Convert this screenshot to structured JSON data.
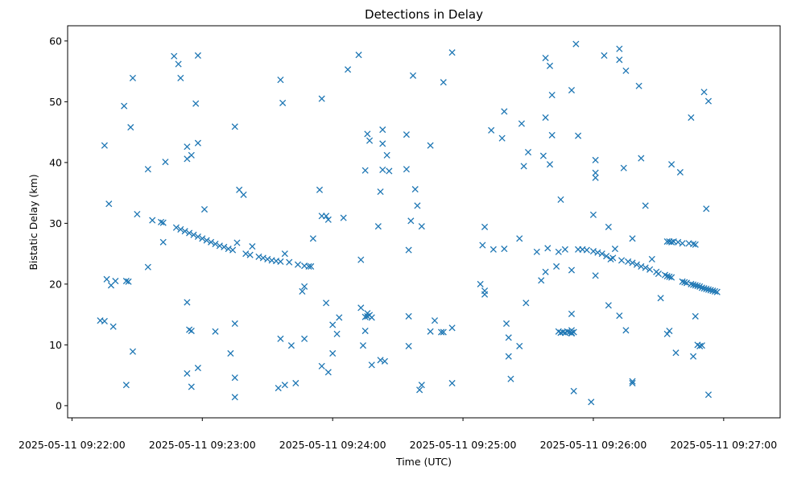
{
  "chart_data": {
    "type": "scatter",
    "title": "Detections in Delay",
    "xlabel": "Time (UTC)",
    "ylabel": "Bistatic Delay (km)",
    "marker": "x",
    "color": "#1f77b4",
    "grid": false,
    "legend": "none",
    "xlim": [
      "2025-05-11 09:21:58",
      "2025-05-11 09:27:26"
    ],
    "ylim": [
      -2,
      62.5
    ],
    "x_ticks": [
      "2025-05-11 09:22:00",
      "2025-05-11 09:23:00",
      "2025-05-11 09:24:00",
      "2025-05-11 09:25:00",
      "2025-05-11 09:26:00",
      "2025-05-11 09:27:00"
    ],
    "y_ticks": [
      "0",
      "10",
      "20",
      "30",
      "40",
      "50",
      "60"
    ],
    "points": [
      [
        "2025-05-11 09:22:15",
        42.8
      ],
      [
        "2025-05-11 09:22:17",
        33.2
      ],
      [
        "2025-05-11 09:22:16",
        20.8
      ],
      [
        "2025-05-11 09:22:18",
        19.8
      ],
      [
        "2025-05-11 09:22:20",
        20.5
      ],
      [
        "2025-05-11 09:22:13",
        14.0
      ],
      [
        "2025-05-11 09:22:15",
        13.9
      ],
      [
        "2025-05-11 09:22:19",
        13.0
      ],
      [
        "2025-05-11 09:22:24",
        49.3
      ],
      [
        "2025-05-11 09:22:27",
        45.8
      ],
      [
        "2025-05-11 09:22:28",
        53.9
      ],
      [
        "2025-05-11 09:22:25",
        20.5
      ],
      [
        "2025-05-11 09:22:26",
        20.4
      ],
      [
        "2025-05-11 09:22:25",
        3.4
      ],
      [
        "2025-05-11 09:22:28",
        8.9
      ],
      [
        "2025-05-11 09:22:30",
        31.5
      ],
      [
        "2025-05-11 09:22:35",
        38.9
      ],
      [
        "2025-05-11 09:22:35",
        22.8
      ],
      [
        "2025-05-11 09:22:37",
        30.5
      ],
      [
        "2025-05-11 09:22:41",
        30.2
      ],
      [
        "2025-05-11 09:22:42",
        30.1
      ],
      [
        "2025-05-11 09:22:42",
        26.9
      ],
      [
        "2025-05-11 09:22:43",
        40.1
      ],
      [
        "2025-05-11 09:22:47",
        57.5
      ],
      [
        "2025-05-11 09:22:49",
        56.2
      ],
      [
        "2025-05-11 09:22:50",
        53.9
      ],
      [
        "2025-05-11 09:22:53",
        42.6
      ],
      [
        "2025-05-11 09:22:53",
        40.6
      ],
      [
        "2025-05-11 09:22:55",
        41.2
      ],
      [
        "2025-05-11 09:22:57",
        49.7
      ],
      [
        "2025-05-11 09:22:58",
        43.2
      ],
      [
        "2025-05-11 09:22:58",
        57.6
      ],
      [
        "2025-05-11 09:22:53",
        17.0
      ],
      [
        "2025-05-11 09:22:54",
        12.5
      ],
      [
        "2025-05-11 09:22:55",
        12.3
      ],
      [
        "2025-05-11 09:22:53",
        5.3
      ],
      [
        "2025-05-11 09:22:55",
        3.1
      ],
      [
        "2025-05-11 09:22:58",
        6.2
      ],
      [
        "2025-05-11 09:23:01",
        32.3
      ],
      [
        "2025-05-11 09:23:06",
        12.2
      ],
      [
        "2025-05-11 09:23:13",
        8.6
      ],
      [
        "2025-05-11 09:23:15",
        1.4
      ],
      [
        "2025-05-11 09:23:15",
        4.6
      ],
      [
        "2025-05-11 09:23:15",
        13.5
      ],
      [
        "2025-05-11 09:23:15",
        45.9
      ],
      [
        "2025-05-11 09:23:17",
        35.5
      ],
      [
        "2025-05-11 09:23:19",
        34.7
      ],
      [
        "2025-05-11 09:22:48",
        29.3
      ],
      [
        "2025-05-11 09:22:50",
        29.0
      ],
      [
        "2025-05-11 09:22:52",
        28.7
      ],
      [
        "2025-05-11 09:22:54",
        28.4
      ],
      [
        "2025-05-11 09:22:56",
        28.1
      ],
      [
        "2025-05-11 09:22:58",
        27.8
      ],
      [
        "2025-05-11 09:23:00",
        27.5
      ],
      [
        "2025-05-11 09:23:02",
        27.2
      ],
      [
        "2025-05-11 09:23:04",
        26.9
      ],
      [
        "2025-05-11 09:23:06",
        26.6
      ],
      [
        "2025-05-11 09:23:08",
        26.3
      ],
      [
        "2025-05-11 09:23:10",
        26.1
      ],
      [
        "2025-05-11 09:23:12",
        25.8
      ],
      [
        "2025-05-11 09:23:14",
        25.6
      ],
      [
        "2025-05-11 09:23:16",
        26.8
      ],
      [
        "2025-05-11 09:23:20",
        25.0
      ],
      [
        "2025-05-11 09:23:22",
        24.8
      ],
      [
        "2025-05-11 09:23:23",
        26.2
      ],
      [
        "2025-05-11 09:23:26",
        24.5
      ],
      [
        "2025-05-11 09:23:28",
        24.3
      ],
      [
        "2025-05-11 09:23:30",
        24.1
      ],
      [
        "2025-05-11 09:23:32",
        23.9
      ],
      [
        "2025-05-11 09:23:34",
        23.8
      ],
      [
        "2025-05-11 09:23:36",
        23.7
      ],
      [
        "2025-05-11 09:23:38",
        25.0
      ],
      [
        "2025-05-11 09:23:40",
        23.6
      ],
      [
        "2025-05-11 09:23:44",
        23.2
      ],
      [
        "2025-05-11 09:23:47",
        23.0
      ],
      [
        "2025-05-11 09:23:49",
        22.9
      ],
      [
        "2025-05-11 09:23:50",
        22.9
      ],
      [
        "2025-05-11 09:23:36",
        53.6
      ],
      [
        "2025-05-11 09:23:37",
        49.8
      ],
      [
        "2025-05-11 09:23:36",
        11.0
      ],
      [
        "2025-05-11 09:23:41",
        9.9
      ],
      [
        "2025-05-11 09:23:35",
        2.9
      ],
      [
        "2025-05-11 09:23:38",
        3.4
      ],
      [
        "2025-05-11 09:23:43",
        3.7
      ],
      [
        "2025-05-11 09:23:46",
        18.8
      ],
      [
        "2025-05-11 09:23:47",
        19.6
      ],
      [
        "2025-05-11 09:23:47",
        11.0
      ],
      [
        "2025-05-11 09:23:51",
        27.5
      ],
      [
        "2025-05-11 09:23:54",
        35.5
      ],
      [
        "2025-05-11 09:23:55",
        31.2
      ],
      [
        "2025-05-11 09:23:55",
        50.5
      ],
      [
        "2025-05-11 09:23:57",
        31.2
      ],
      [
        "2025-05-11 09:23:58",
        30.6
      ],
      [
        "2025-05-11 09:23:55",
        6.5
      ],
      [
        "2025-05-11 09:23:58",
        5.5
      ],
      [
        "2025-05-11 09:23:57",
        16.9
      ],
      [
        "2025-05-11 09:24:00",
        13.3
      ],
      [
        "2025-05-11 09:24:00",
        8.6
      ],
      [
        "2025-05-11 09:24:02",
        11.8
      ],
      [
        "2025-05-11 09:24:03",
        14.5
      ],
      [
        "2025-05-11 09:24:05",
        30.9
      ],
      [
        "2025-05-11 09:24:07",
        55.3
      ],
      [
        "2025-05-11 09:24:12",
        57.7
      ],
      [
        "2025-05-11 09:24:13",
        24.0
      ],
      [
        "2025-05-11 09:24:13",
        16.1
      ],
      [
        "2025-05-11 09:24:14",
        9.9
      ],
      [
        "2025-05-11 09:24:15",
        14.6
      ],
      [
        "2025-05-11 09:24:15",
        12.3
      ],
      [
        "2025-05-11 09:24:16",
        15.2
      ],
      [
        "2025-05-11 09:24:16",
        14.7
      ],
      [
        "2025-05-11 09:24:17",
        14.9
      ],
      [
        "2025-05-11 09:24:18",
        14.5
      ],
      [
        "2025-05-11 09:24:15",
        38.7
      ],
      [
        "2025-05-11 09:24:16",
        44.7
      ],
      [
        "2025-05-11 09:24:17",
        43.6
      ],
      [
        "2025-05-11 09:24:18",
        6.7
      ],
      [
        "2025-05-11 09:24:21",
        29.5
      ],
      [
        "2025-05-11 09:24:22",
        35.2
      ],
      [
        "2025-05-11 09:24:23",
        45.4
      ],
      [
        "2025-05-11 09:24:23",
        43.1
      ],
      [
        "2025-05-11 09:24:23",
        38.8
      ],
      [
        "2025-05-11 09:24:25",
        41.2
      ],
      [
        "2025-05-11 09:24:26",
        38.6
      ],
      [
        "2025-05-11 09:24:22",
        7.5
      ],
      [
        "2025-05-11 09:24:24",
        7.3
      ],
      [
        "2025-05-11 09:24:34",
        44.6
      ],
      [
        "2025-05-11 09:24:34",
        38.9
      ],
      [
        "2025-05-11 09:24:35",
        25.6
      ],
      [
        "2025-05-11 09:24:35",
        14.7
      ],
      [
        "2025-05-11 09:24:35",
        9.8
      ],
      [
        "2025-05-11 09:24:36",
        30.4
      ],
      [
        "2025-05-11 09:24:37",
        54.3
      ],
      [
        "2025-05-11 09:24:38",
        35.6
      ],
      [
        "2025-05-11 09:24:39",
        32.9
      ],
      [
        "2025-05-11 09:24:41",
        29.5
      ],
      [
        "2025-05-11 09:24:40",
        2.6
      ],
      [
        "2025-05-11 09:24:41",
        3.4
      ],
      [
        "2025-05-11 09:24:45",
        42.8
      ],
      [
        "2025-05-11 09:24:45",
        12.2
      ],
      [
        "2025-05-11 09:24:47",
        14.0
      ],
      [
        "2025-05-11 09:24:50",
        12.1
      ],
      [
        "2025-05-11 09:24:51",
        12.1
      ],
      [
        "2025-05-11 09:24:51",
        53.2
      ],
      [
        "2025-05-11 09:24:55",
        58.1
      ],
      [
        "2025-05-11 09:24:55",
        12.8
      ],
      [
        "2025-05-11 09:24:55",
        3.7
      ],
      [
        "2025-05-11 09:25:08",
        20.0
      ],
      [
        "2025-05-11 09:25:09",
        26.4
      ],
      [
        "2025-05-11 09:25:10",
        18.3
      ],
      [
        "2025-05-11 09:25:10",
        18.9
      ],
      [
        "2025-05-11 09:25:10",
        29.4
      ],
      [
        "2025-05-11 09:25:13",
        45.3
      ],
      [
        "2025-05-11 09:25:14",
        25.7
      ],
      [
        "2025-05-11 09:25:18",
        44.0
      ],
      [
        "2025-05-11 09:25:19",
        48.4
      ],
      [
        "2025-05-11 09:25:19",
        25.8
      ],
      [
        "2025-05-11 09:25:20",
        13.5
      ],
      [
        "2025-05-11 09:25:21",
        11.2
      ],
      [
        "2025-05-11 09:25:21",
        8.1
      ],
      [
        "2025-05-11 09:25:22",
        4.4
      ],
      [
        "2025-05-11 09:25:26",
        9.8
      ],
      [
        "2025-05-11 09:25:26",
        27.5
      ],
      [
        "2025-05-11 09:25:27",
        46.4
      ],
      [
        "2025-05-11 09:25:28",
        39.4
      ],
      [
        "2025-05-11 09:25:29",
        16.9
      ],
      [
        "2025-05-11 09:25:30",
        41.7
      ],
      [
        "2025-05-11 09:25:34",
        25.3
      ],
      [
        "2025-05-11 09:25:36",
        20.6
      ],
      [
        "2025-05-11 09:25:37",
        41.1
      ],
      [
        "2025-05-11 09:25:39",
        25.9
      ],
      [
        "2025-05-11 09:25:38",
        22.0
      ],
      [
        "2025-05-11 09:25:38",
        47.4
      ],
      [
        "2025-05-11 09:25:38",
        57.2
      ],
      [
        "2025-05-11 09:25:40",
        55.9
      ],
      [
        "2025-05-11 09:25:40",
        39.7
      ],
      [
        "2025-05-11 09:25:41",
        51.1
      ],
      [
        "2025-05-11 09:25:41",
        44.5
      ],
      [
        "2025-05-11 09:25:43",
        22.9
      ],
      [
        "2025-05-11 09:25:44",
        25.3
      ],
      [
        "2025-05-11 09:25:44",
        12.2
      ],
      [
        "2025-05-11 09:25:45",
        33.9
      ],
      [
        "2025-05-11 09:25:45",
        12.0
      ],
      [
        "2025-05-11 09:25:46",
        12.1
      ],
      [
        "2025-05-11 09:25:47",
        25.7
      ],
      [
        "2025-05-11 09:25:47",
        12.0
      ],
      [
        "2025-05-11 09:25:48",
        12.2
      ],
      [
        "2025-05-11 09:25:49",
        12.1
      ],
      [
        "2025-05-11 09:25:50",
        12.0
      ],
      [
        "2025-05-11 09:25:50",
        11.9
      ],
      [
        "2025-05-11 09:25:50",
        12.4
      ],
      [
        "2025-05-11 09:25:50",
        15.1
      ],
      [
        "2025-05-11 09:25:51",
        12.1
      ],
      [
        "2025-05-11 09:25:50",
        22.3
      ],
      [
        "2025-05-11 09:25:50",
        51.9
      ],
      [
        "2025-05-11 09:25:51",
        2.4
      ],
      [
        "2025-05-11 09:25:52",
        59.5
      ],
      [
        "2025-05-11 09:25:53",
        44.4
      ],
      [
        "2025-05-11 09:25:53",
        25.7
      ],
      [
        "2025-05-11 09:25:55",
        25.7
      ],
      [
        "2025-05-11 09:25:57",
        25.6
      ],
      [
        "2025-05-11 09:25:59",
        0.6
      ],
      [
        "2025-05-11 09:26:00",
        31.4
      ],
      [
        "2025-05-11 09:26:01",
        40.4
      ],
      [
        "2025-05-11 09:26:01",
        38.3
      ],
      [
        "2025-05-11 09:26:01",
        37.5
      ],
      [
        "2025-05-11 09:26:01",
        21.4
      ],
      [
        "2025-05-11 09:26:00",
        25.4
      ],
      [
        "2025-05-11 09:26:02",
        25.2
      ],
      [
        "2025-05-11 09:26:04",
        25.0
      ],
      [
        "2025-05-11 09:26:05",
        57.6
      ],
      [
        "2025-05-11 09:26:06",
        24.6
      ],
      [
        "2025-05-11 09:26:07",
        29.4
      ],
      [
        "2025-05-11 09:26:07",
        16.5
      ],
      [
        "2025-05-11 09:26:08",
        24.1
      ],
      [
        "2025-05-11 09:26:09",
        24.3
      ],
      [
        "2025-05-11 09:26:10",
        25.8
      ],
      [
        "2025-05-11 09:26:12",
        58.7
      ],
      [
        "2025-05-11 09:26:12",
        56.9
      ],
      [
        "2025-05-11 09:26:12",
        14.8
      ],
      [
        "2025-05-11 09:26:13",
        23.9
      ],
      [
        "2025-05-11 09:26:14",
        39.1
      ],
      [
        "2025-05-11 09:26:15",
        55.1
      ],
      [
        "2025-05-11 09:26:15",
        12.4
      ],
      [
        "2025-05-11 09:26:16",
        23.7
      ],
      [
        "2025-05-11 09:26:18",
        23.5
      ],
      [
        "2025-05-11 09:26:18",
        27.5
      ],
      [
        "2025-05-11 09:26:18",
        4.0
      ],
      [
        "2025-05-11 09:26:18",
        3.7
      ],
      [
        "2025-05-11 09:26:20",
        23.2
      ],
      [
        "2025-05-11 09:26:21",
        52.6
      ],
      [
        "2025-05-11 09:26:22",
        40.7
      ],
      [
        "2025-05-11 09:26:22",
        22.9
      ],
      [
        "2025-05-11 09:26:24",
        22.7
      ],
      [
        "2025-05-11 09:26:24",
        32.9
      ],
      [
        "2025-05-11 09:26:26",
        22.4
      ],
      [
        "2025-05-11 09:26:27",
        24.1
      ],
      [
        "2025-05-11 09:26:29",
        22.0
      ],
      [
        "2025-05-11 09:26:30",
        21.7
      ],
      [
        "2025-05-11 09:26:31",
        17.7
      ],
      [
        "2025-05-11 09:26:33",
        21.5
      ],
      [
        "2025-05-11 09:26:34",
        21.3
      ],
      [
        "2025-05-11 09:26:35",
        21.2
      ],
      [
        "2025-05-11 09:26:36",
        21.1
      ],
      [
        "2025-05-11 09:26:34",
        27.0
      ],
      [
        "2025-05-11 09:26:35",
        27.0
      ],
      [
        "2025-05-11 09:26:36",
        26.9
      ],
      [
        "2025-05-11 09:26:37",
        27.0
      ],
      [
        "2025-05-11 09:26:39",
        26.9
      ],
      [
        "2025-05-11 09:26:41",
        26.7
      ],
      [
        "2025-05-11 09:26:44",
        26.7
      ],
      [
        "2025-05-11 09:26:46",
        26.6
      ],
      [
        "2025-05-11 09:26:47",
        26.5
      ],
      [
        "2025-05-11 09:26:34",
        11.8
      ],
      [
        "2025-05-11 09:26:35",
        12.3
      ],
      [
        "2025-05-11 09:26:36",
        39.7
      ],
      [
        "2025-05-11 09:26:38",
        8.7
      ],
      [
        "2025-05-11 09:26:40",
        38.4
      ],
      [
        "2025-05-11 09:26:41",
        20.4
      ],
      [
        "2025-05-11 09:26:42",
        20.3
      ],
      [
        "2025-05-11 09:26:43",
        20.2
      ],
      [
        "2025-05-11 09:26:45",
        20.0
      ],
      [
        "2025-05-11 09:26:46",
        19.9
      ],
      [
        "2025-05-11 09:26:47",
        19.8
      ],
      [
        "2025-05-11 09:26:48",
        19.7
      ],
      [
        "2025-05-11 09:26:49",
        19.6
      ],
      [
        "2025-05-11 09:26:50",
        19.4
      ],
      [
        "2025-05-11 09:26:51",
        19.3
      ],
      [
        "2025-05-11 09:26:52",
        19.2
      ],
      [
        "2025-05-11 09:26:53",
        19.1
      ],
      [
        "2025-05-11 09:26:54",
        19.0
      ],
      [
        "2025-05-11 09:26:55",
        18.9
      ],
      [
        "2025-05-11 09:26:56",
        18.8
      ],
      [
        "2025-05-11 09:26:57",
        18.7
      ],
      [
        "2025-05-11 09:26:45",
        47.4
      ],
      [
        "2025-05-11 09:26:46",
        8.1
      ],
      [
        "2025-05-11 09:26:47",
        14.7
      ],
      [
        "2025-05-11 09:26:48",
        10.0
      ],
      [
        "2025-05-11 09:26:49",
        9.8
      ],
      [
        "2025-05-11 09:26:50",
        9.9
      ],
      [
        "2025-05-11 09:26:51",
        51.6
      ],
      [
        "2025-05-11 09:26:52",
        32.4
      ],
      [
        "2025-05-11 09:26:53",
        50.1
      ],
      [
        "2025-05-11 09:26:53",
        1.8
      ]
    ]
  }
}
